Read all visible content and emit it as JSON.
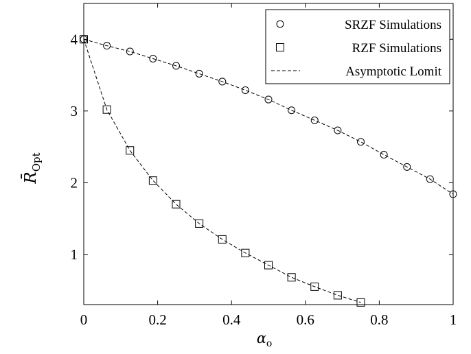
{
  "chart_data": {
    "type": "scatter",
    "xlabel": "α",
    "xlabel_sub": "o",
    "ylabel": "R̄",
    "ylabel_sub": "Opt",
    "xlim": [
      0,
      1
    ],
    "ylim": [
      0.3,
      4.5
    ],
    "xticks": [
      0,
      0.2,
      0.4,
      0.6,
      0.8,
      1
    ],
    "xtick_labels": [
      "0",
      "0.2",
      "0.4",
      "0.6",
      "0.8",
      "1"
    ],
    "yticks": [
      1,
      2,
      3,
      4
    ],
    "ytick_labels": [
      "1",
      "2",
      "3",
      "4"
    ],
    "grid": false,
    "legend_position": "top-right",
    "series": [
      {
        "name": "SRZF Simulations",
        "marker": "circle",
        "x": [
          0,
          0.0625,
          0.125,
          0.1875,
          0.25,
          0.3125,
          0.375,
          0.4375,
          0.5,
          0.5625,
          0.625,
          0.6875,
          0.75,
          0.8125,
          0.875,
          0.9375,
          1
        ],
        "y": [
          4.0,
          3.91,
          3.83,
          3.73,
          3.63,
          3.52,
          3.41,
          3.29,
          3.16,
          3.01,
          2.87,
          2.73,
          2.57,
          2.39,
          2.22,
          2.05,
          1.84
        ]
      },
      {
        "name": "RZF Simulations",
        "marker": "square",
        "x": [
          0,
          0.0625,
          0.125,
          0.1875,
          0.25,
          0.3125,
          0.375,
          0.4375,
          0.5,
          0.5625,
          0.625,
          0.6875,
          0.75
        ],
        "y": [
          4.0,
          3.02,
          2.45,
          2.03,
          1.7,
          1.43,
          1.21,
          1.02,
          0.85,
          0.68,
          0.55,
          0.43,
          0.33
        ]
      },
      {
        "name": "Asymptotic Lomit",
        "style": "dashed",
        "x": [
          0,
          0.0625,
          0.125,
          0.1875,
          0.25,
          0.3125,
          0.375,
          0.4375,
          0.5,
          0.5625,
          0.625,
          0.6875,
          0.75,
          0.8125,
          0.875,
          0.9375,
          1
        ],
        "y": [
          4.0,
          3.91,
          3.83,
          3.73,
          3.63,
          3.52,
          3.41,
          3.29,
          3.16,
          3.01,
          2.87,
          2.73,
          2.57,
          2.39,
          2.22,
          2.05,
          1.84
        ],
        "x2": [
          0,
          0.0625,
          0.125,
          0.1875,
          0.25,
          0.3125,
          0.375,
          0.4375,
          0.5,
          0.5625,
          0.625,
          0.6875,
          0.75
        ],
        "y2": [
          4.0,
          3.02,
          2.45,
          2.03,
          1.7,
          1.43,
          1.21,
          1.02,
          0.85,
          0.68,
          0.55,
          0.43,
          0.33
        ]
      }
    ]
  }
}
